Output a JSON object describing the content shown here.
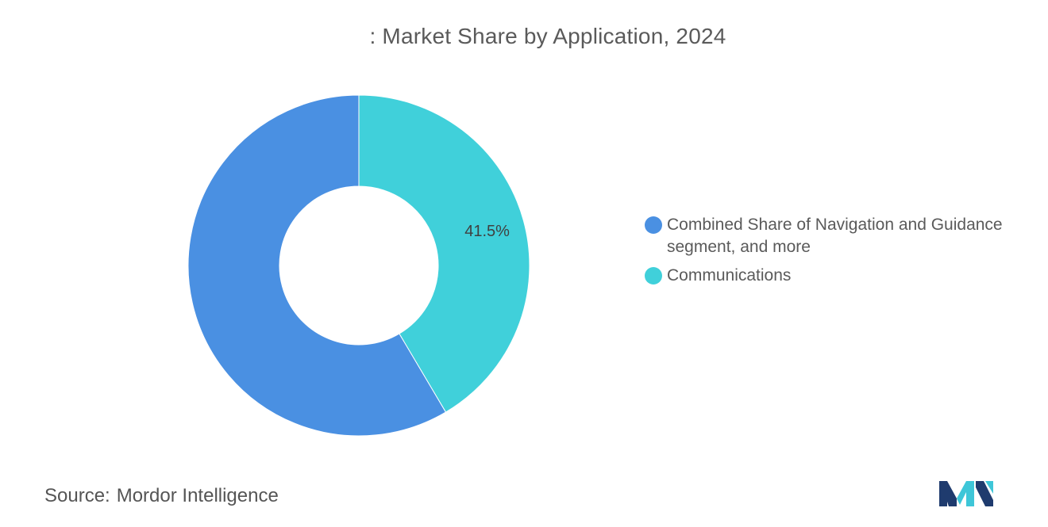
{
  "chart_data": {
    "type": "pie",
    "variant": "donut",
    "title": ": Market Share by Application, 2024",
    "categories": [
      "Combined Share of Navigation and Guidance segment, and more",
      "Communications"
    ],
    "values": [
      58.5,
      41.5
    ],
    "data_labels": [
      "",
      "41.5%"
    ],
    "colors": [
      "#4a90e2",
      "#40d0da"
    ],
    "legend_position": "right"
  },
  "footer": {
    "source_label": "Source:",
    "source_value": "Mordor Intelligence"
  },
  "logo": {
    "icon": "mordor-intelligence-logo-icon",
    "colors": [
      "#1f3b6e",
      "#3ec6d8"
    ]
  }
}
